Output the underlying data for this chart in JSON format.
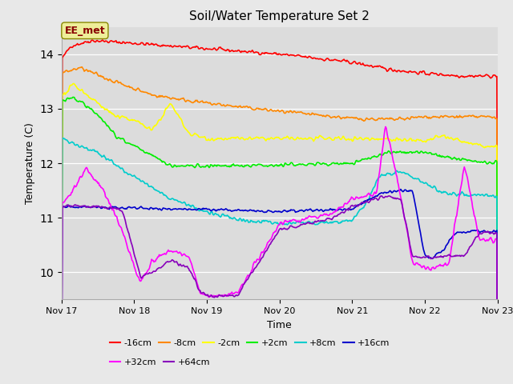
{
  "title": "Soil/Water Temperature Set 2",
  "xlabel": "Time",
  "ylabel": "Temperature (C)",
  "ylim": [
    9.5,
    14.5
  ],
  "xlim": [
    0,
    144
  ],
  "xtick_labels": [
    "Nov 17",
    "Nov 18",
    "Nov 19",
    "Nov 20",
    "Nov 21",
    "Nov 22",
    "Nov 23"
  ],
  "xtick_positions": [
    0,
    24,
    48,
    72,
    96,
    120,
    144
  ],
  "fig_bg": "#e8e8e8",
  "plot_bg": "#dcdcdc",
  "annotation_label": "EE_met",
  "annotation_bg": "#eeee99",
  "annotation_edge": "#888800",
  "annotation_text_color": "#880000",
  "series_colors": {
    "-16cm": "#ff0000",
    "-8cm": "#ff8800",
    "-2cm": "#ffff00",
    "+2cm": "#00ee00",
    "+8cm": "#00cccc",
    "+16cm": "#0000cc",
    "+32cm": "#ff00ff",
    "+64cm": "#8800bb"
  }
}
